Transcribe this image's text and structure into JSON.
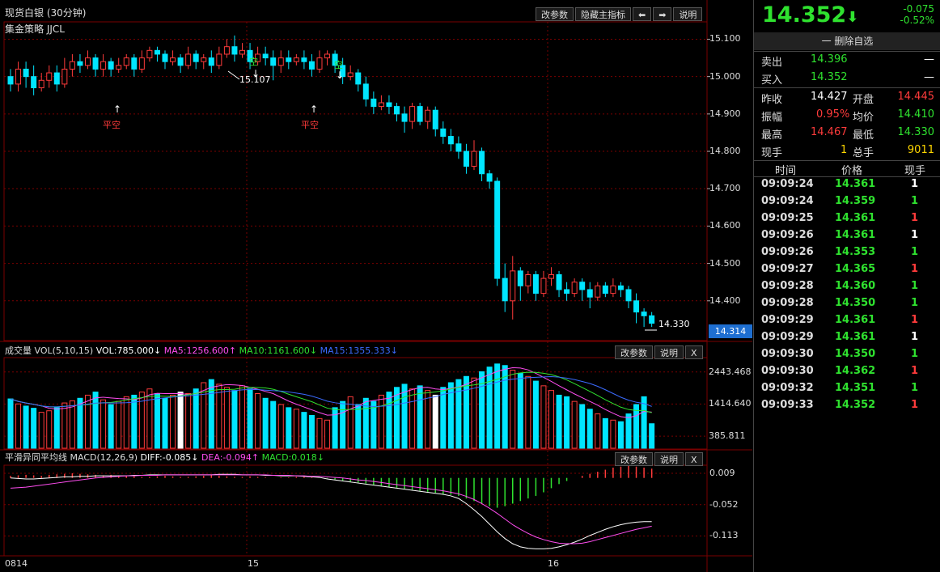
{
  "header": {
    "title": "现货白银 (30分钟)",
    "strategy": "集金策略 JJCL",
    "buttons": {
      "params": "改参数",
      "hide": "隐藏主指标",
      "left": "⬅",
      "right": "➡",
      "help": "说明"
    }
  },
  "colors": {
    "up": "#ff3b3b",
    "down": "#00e5ff",
    "grid": "#7a0000",
    "white": "#ffffff"
  },
  "main_chart": {
    "y_ticks": [
      "15.100",
      "15.000",
      "14.900",
      "14.800",
      "14.700",
      "14.600",
      "14.500",
      "14.400"
    ],
    "current_price_tag": "14.314",
    "annotations": {
      "high": "15.107",
      "low": "14.330",
      "flat_short_1": "平空",
      "flat_short_2": "平空",
      "short_1": "空",
      "short_2": "空"
    }
  },
  "volume": {
    "title": "成交量 VOL(5,10,15)",
    "vol": "VOL:785.000↓",
    "ma5": "MA5:1256.600↑",
    "ma10": "MA10:1161.600↓",
    "ma15": "MA15:1355.333↓",
    "y_ticks": [
      "2443.468",
      "1414.640",
      "385.811"
    ],
    "buttons": {
      "params": "改参数",
      "help": "说明",
      "close": "X"
    }
  },
  "macd": {
    "title": "平滑异同平均线",
    "label": "MACD(12,26,9)",
    "diff": "DIFF:-0.085↓",
    "dea": "DEA:-0.094↑",
    "macd": "MACD:0.018↓",
    "y_ticks": [
      "0.009",
      "-0.052",
      "-0.113"
    ],
    "buttons": {
      "params": "改参数",
      "help": "说明",
      "close": "X"
    }
  },
  "x_axis": [
    "0814",
    "15",
    "16"
  ],
  "chart_data": {
    "type": "candlestick",
    "ylim": [
      14.3,
      15.14
    ],
    "candles": [
      [
        15.0,
        14.98,
        15.02,
        14.96
      ],
      [
        14.98,
        15.02,
        15.04,
        14.96
      ],
      [
        15.02,
        15.0,
        15.04,
        14.97
      ],
      [
        15.0,
        14.97,
        15.03,
        14.95
      ],
      [
        14.97,
        14.99,
        15.01,
        14.96
      ],
      [
        14.99,
        15.01,
        15.03,
        14.97
      ],
      [
        15.01,
        14.98,
        15.03,
        14.96
      ],
      [
        14.98,
        15.02,
        15.05,
        14.97
      ],
      [
        15.02,
        15.04,
        15.06,
        15.0
      ],
      [
        15.04,
        15.03,
        15.06,
        15.01
      ],
      [
        15.03,
        15.05,
        15.07,
        15.02
      ],
      [
        15.05,
        15.02,
        15.06,
        15.0
      ],
      [
        15.02,
        15.04,
        15.06,
        15.0
      ],
      [
        15.04,
        15.02,
        15.05,
        15.0
      ],
      [
        15.02,
        15.03,
        15.05,
        15.01
      ],
      [
        15.03,
        15.05,
        15.06,
        15.02
      ],
      [
        15.05,
        15.02,
        15.06,
        15.0
      ],
      [
        15.02,
        15.05,
        15.07,
        15.01
      ],
      [
        15.05,
        15.07,
        15.08,
        15.04
      ],
      [
        15.07,
        15.06,
        15.08,
        15.04
      ],
      [
        15.06,
        15.04,
        15.07,
        15.02
      ],
      [
        15.04,
        15.05,
        15.07,
        15.03
      ],
      [
        15.05,
        15.03,
        15.06,
        15.01
      ],
      [
        15.03,
        15.06,
        15.08,
        15.02
      ],
      [
        15.06,
        15.04,
        15.07,
        15.02
      ],
      [
        15.04,
        15.05,
        15.06,
        15.02
      ],
      [
        15.05,
        15.03,
        15.07,
        15.01
      ],
      [
        15.03,
        15.06,
        15.08,
        15.02
      ],
      [
        15.06,
        15.08,
        15.1,
        15.05
      ],
      [
        15.08,
        15.06,
        15.11,
        15.04
      ],
      [
        15.06,
        15.07,
        15.09,
        15.05
      ],
      [
        15.07,
        15.04,
        15.09,
        15.02
      ],
      [
        15.04,
        15.06,
        15.08,
        15.03
      ],
      [
        15.06,
        15.05,
        15.08,
        15.03
      ],
      [
        15.05,
        15.03,
        15.07,
        14.99
      ],
      [
        15.03,
        15.05,
        15.07,
        15.01
      ],
      [
        15.05,
        15.04,
        15.07,
        15.02
      ],
      [
        15.04,
        15.05,
        15.06,
        15.03
      ],
      [
        15.05,
        15.04,
        15.07,
        15.02
      ],
      [
        15.04,
        15.02,
        15.06,
        15.0
      ],
      [
        15.02,
        15.05,
        15.07,
        15.01
      ],
      [
        15.05,
        15.06,
        15.07,
        15.03
      ],
      [
        15.06,
        15.03,
        15.07,
        15.01
      ],
      [
        15.03,
        15.0,
        15.05,
        14.98
      ],
      [
        15.0,
        15.01,
        15.03,
        14.99
      ],
      [
        15.01,
        14.98,
        15.02,
        14.96
      ],
      [
        14.98,
        14.94,
        15.0,
        14.92
      ],
      [
        14.94,
        14.92,
        14.96,
        14.9
      ],
      [
        14.92,
        14.93,
        14.95,
        14.91
      ],
      [
        14.93,
        14.92,
        14.95,
        14.9
      ],
      [
        14.92,
        14.9,
        14.93,
        14.88
      ],
      [
        14.9,
        14.88,
        14.92,
        14.85
      ],
      [
        14.88,
        14.92,
        14.93,
        14.86
      ],
      [
        14.92,
        14.88,
        14.93,
        14.87
      ],
      [
        14.88,
        14.91,
        14.92,
        14.86
      ],
      [
        14.91,
        14.86,
        14.92,
        14.84
      ],
      [
        14.86,
        14.84,
        14.88,
        14.82
      ],
      [
        14.84,
        14.82,
        14.86,
        14.8
      ],
      [
        14.82,
        14.8,
        14.84,
        14.78
      ],
      [
        14.8,
        14.76,
        14.82,
        14.74
      ],
      [
        14.76,
        14.8,
        14.83,
        14.75
      ],
      [
        14.8,
        14.74,
        14.81,
        14.72
      ],
      [
        14.74,
        14.72,
        14.75,
        14.7
      ],
      [
        14.72,
        14.46,
        14.73,
        14.44
      ],
      [
        14.46,
        14.4,
        14.5,
        14.37
      ],
      [
        14.4,
        14.48,
        14.52,
        14.35
      ],
      [
        14.48,
        14.44,
        14.49,
        14.4
      ],
      [
        14.44,
        14.47,
        14.48,
        14.42
      ],
      [
        14.47,
        14.42,
        14.48,
        14.4
      ],
      [
        14.42,
        14.46,
        14.48,
        14.41
      ],
      [
        14.46,
        14.47,
        14.49,
        14.44
      ],
      [
        14.47,
        14.43,
        14.48,
        14.41
      ],
      [
        14.43,
        14.42,
        14.45,
        14.4
      ],
      [
        14.42,
        14.45,
        14.46,
        14.41
      ],
      [
        14.45,
        14.43,
        14.46,
        14.4
      ],
      [
        14.43,
        14.41,
        14.45,
        14.38
      ],
      [
        14.41,
        14.44,
        14.45,
        14.4
      ],
      [
        14.44,
        14.42,
        14.45,
        14.41
      ],
      [
        14.42,
        14.44,
        14.46,
        14.41
      ],
      [
        14.44,
        14.43,
        14.45,
        14.41
      ],
      [
        14.43,
        14.4,
        14.44,
        14.38
      ],
      [
        14.4,
        14.37,
        14.42,
        14.34
      ],
      [
        14.37,
        14.36,
        14.38,
        14.33
      ],
      [
        14.36,
        14.34,
        14.37,
        14.33
      ]
    ],
    "volumes": [
      1580,
      1420,
      1350,
      1280,
      1150,
      1200,
      1300,
      1450,
      1520,
      1600,
      1700,
      1800,
      1550,
      1400,
      1500,
      1650,
      1700,
      1800,
      1900,
      1750,
      1600,
      1700,
      1800,
      1750,
      1900,
      2100,
      2200,
      2050,
      1950,
      1850,
      2000,
      1900,
      1750,
      1600,
      1500,
      1400,
      1300,
      1250,
      1150,
      1050,
      950,
      900,
      1300,
      1500,
      1650,
      1400,
      1600,
      1500,
      1700,
      1800,
      1950,
      2050,
      1900,
      2000,
      1850,
      1700,
      1950,
      2100,
      2200,
      2300,
      2250,
      2450,
      2600,
      2700,
      2650,
      2500,
      2400,
      2300,
      2150,
      2000,
      1850,
      1700,
      1650,
      1500,
      1400,
      1250,
      1100,
      950,
      900,
      850,
      1100,
      1400,
      1650,
      785
    ],
    "macd_hist": [
      0.004,
      0.005,
      0.006,
      0.005,
      0.004,
      0.006,
      0.007,
      0.008,
      0.009,
      0.008,
      0.007,
      0.006,
      0.005,
      0.006,
      0.005,
      0.004,
      0.003,
      0.002,
      0.002,
      0.003,
      0.004,
      0.003,
      0.002,
      0.002,
      0.003,
      0.004,
      0.005,
      0.004,
      0.003,
      0.002,
      0.002,
      0.003,
      0.002,
      0.001,
      0.0,
      0.001,
      0.001,
      0.002,
      0.002,
      0.001,
      0.0,
      -0.001,
      -0.003,
      -0.005,
      -0.007,
      -0.009,
      -0.011,
      -0.013,
      -0.015,
      -0.017,
      -0.019,
      -0.021,
      -0.023,
      -0.025,
      -0.027,
      -0.029,
      -0.031,
      -0.033,
      -0.035,
      -0.04,
      -0.045,
      -0.05,
      -0.055,
      -0.058,
      -0.055,
      -0.05,
      -0.045,
      -0.04,
      -0.035,
      -0.028,
      -0.02,
      -0.012,
      -0.006,
      0.0,
      0.004,
      0.008,
      0.012,
      0.016,
      0.02,
      0.022,
      0.024,
      0.022,
      0.02,
      0.018
    ],
    "diff": [
      0.0,
      -0.001,
      -0.002,
      -0.002,
      -0.001,
      0.0,
      0.001,
      0.002,
      0.002,
      0.003,
      0.003,
      0.004,
      0.004,
      0.004,
      0.004,
      0.004,
      0.005,
      0.005,
      0.006,
      0.006,
      0.006,
      0.006,
      0.006,
      0.006,
      0.006,
      0.006,
      0.006,
      0.007,
      0.007,
      0.007,
      0.006,
      0.006,
      0.006,
      0.005,
      0.005,
      0.004,
      0.004,
      0.004,
      0.003,
      0.002,
      0.001,
      -0.002,
      -0.004,
      -0.006,
      -0.008,
      -0.01,
      -0.012,
      -0.014,
      -0.016,
      -0.018,
      -0.02,
      -0.022,
      -0.024,
      -0.026,
      -0.028,
      -0.03,
      -0.032,
      -0.035,
      -0.04,
      -0.05,
      -0.062,
      -0.075,
      -0.09,
      -0.105,
      -0.118,
      -0.128,
      -0.134,
      -0.137,
      -0.138,
      -0.138,
      -0.137,
      -0.134,
      -0.13,
      -0.125,
      -0.119,
      -0.112,
      -0.106,
      -0.1,
      -0.095,
      -0.091,
      -0.088,
      -0.086,
      -0.085,
      -0.085
    ],
    "dea": [
      -0.02,
      -0.019,
      -0.018,
      -0.016,
      -0.014,
      -0.012,
      -0.01,
      -0.008,
      -0.006,
      -0.004,
      -0.002,
      0.0,
      0.001,
      0.002,
      0.003,
      0.004,
      0.004,
      0.005,
      0.005,
      0.005,
      0.006,
      0.006,
      0.006,
      0.006,
      0.006,
      0.006,
      0.006,
      0.006,
      0.006,
      0.006,
      0.006,
      0.006,
      0.006,
      0.006,
      0.005,
      0.005,
      0.005,
      0.004,
      0.004,
      0.003,
      0.003,
      0.002,
      0.001,
      0.0,
      -0.002,
      -0.004,
      -0.005,
      -0.007,
      -0.009,
      -0.011,
      -0.013,
      -0.015,
      -0.017,
      -0.019,
      -0.021,
      -0.023,
      -0.025,
      -0.028,
      -0.031,
      -0.036,
      -0.042,
      -0.05,
      -0.059,
      -0.069,
      -0.08,
      -0.091,
      -0.1,
      -0.108,
      -0.115,
      -0.12,
      -0.124,
      -0.127,
      -0.128,
      -0.128,
      -0.127,
      -0.124,
      -0.12,
      -0.116,
      -0.112,
      -0.108,
      -0.104,
      -0.1,
      -0.097,
      -0.094
    ]
  },
  "quote": {
    "price": "14.352",
    "arrow": "⬇",
    "change": "-0.075",
    "change_pct": "-0.52%",
    "remove_watch": "一 删除自选",
    "sell_label": "卖出",
    "sell_price": "14.396",
    "sell_vol": "—",
    "buy_label": "买入",
    "buy_price": "14.352",
    "buy_vol": "—",
    "prev_close_label": "昨收",
    "prev_close": "14.427",
    "open_label": "开盘",
    "open": "14.445",
    "amplitude_label": "振幅",
    "amplitude": "0.95%",
    "avg_label": "均价",
    "avg": "14.410",
    "high_label": "最高",
    "high": "14.467",
    "low_label": "最低",
    "low": "14.330",
    "cur_vol_label": "现手",
    "cur_vol": "1",
    "total_vol_label": "总手",
    "total_vol": "9011"
  },
  "ticks_header": {
    "time": "时间",
    "price": "价格",
    "vol": "现手"
  },
  "ticks": [
    {
      "time": "09:09:24",
      "price": "14.361",
      "vol": "1",
      "c": "white"
    },
    {
      "time": "09:09:24",
      "price": "14.359",
      "vol": "1",
      "c": "green"
    },
    {
      "time": "09:09:25",
      "price": "14.361",
      "vol": "1",
      "c": "red"
    },
    {
      "time": "09:09:26",
      "price": "14.361",
      "vol": "1",
      "c": "white"
    },
    {
      "time": "09:09:26",
      "price": "14.353",
      "vol": "1",
      "c": "green"
    },
    {
      "time": "09:09:27",
      "price": "14.365",
      "vol": "1",
      "c": "red"
    },
    {
      "time": "09:09:28",
      "price": "14.360",
      "vol": "1",
      "c": "green"
    },
    {
      "time": "09:09:28",
      "price": "14.350",
      "vol": "1",
      "c": "green"
    },
    {
      "time": "09:09:29",
      "price": "14.361",
      "vol": "1",
      "c": "red"
    },
    {
      "time": "09:09:29",
      "price": "14.361",
      "vol": "1",
      "c": "white"
    },
    {
      "time": "09:09:30",
      "price": "14.350",
      "vol": "1",
      "c": "green"
    },
    {
      "time": "09:09:30",
      "price": "14.362",
      "vol": "1",
      "c": "red"
    },
    {
      "time": "09:09:32",
      "price": "14.351",
      "vol": "1",
      "c": "green"
    },
    {
      "time": "09:09:33",
      "price": "14.352",
      "vol": "1",
      "c": "red"
    }
  ]
}
